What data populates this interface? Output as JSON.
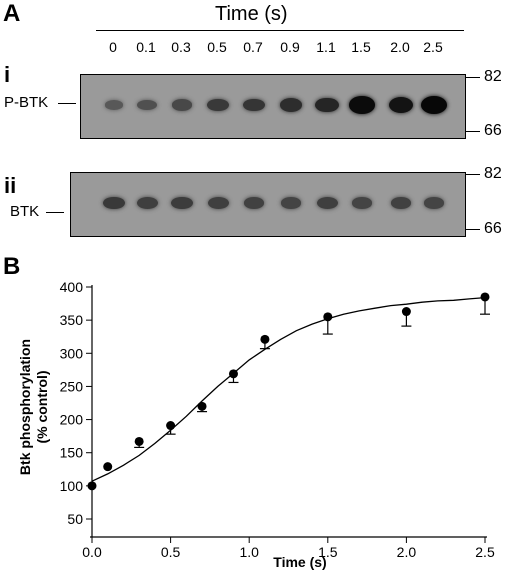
{
  "panel_a": {
    "letter": "A",
    "time_title": "Time (s)",
    "time_labels": [
      "0",
      "0.1",
      "0.3",
      "0.5",
      "0.7",
      "0.9",
      "1.1",
      "1.5",
      "2.0",
      "2.5"
    ],
    "blot_i": {
      "label": "i",
      "lane_label": "P-BTK",
      "marker_top": "82",
      "marker_bottom": "66",
      "band_intensity": [
        0.28,
        0.35,
        0.42,
        0.55,
        0.58,
        0.65,
        0.72,
        0.95,
        0.88,
        0.98
      ]
    },
    "blot_ii": {
      "label": "ii",
      "lane_label": "BTK",
      "marker_top": "82",
      "marker_bottom": "66",
      "band_intensity": [
        0.55,
        0.5,
        0.52,
        0.5,
        0.48,
        0.45,
        0.5,
        0.45,
        0.48,
        0.45
      ]
    }
  },
  "panel_b": {
    "letter": "B"
  },
  "chart_data": {
    "type": "scatter",
    "xlabel": "Time (s)",
    "ylabel": "Btk phosphorylation",
    "ylabel2": "(% control)",
    "xlim": [
      0,
      2.5
    ],
    "ylim": [
      50,
      400
    ],
    "x_ticks": [
      "0.0",
      "0.5",
      "1.0",
      "1.5",
      "2.0",
      "2.5"
    ],
    "x_tick_values": [
      0,
      0.5,
      1.0,
      1.5,
      2.0,
      2.5
    ],
    "y_ticks": [
      50,
      100,
      150,
      200,
      250,
      300,
      350,
      400
    ],
    "series": [
      {
        "x": [
          0,
          0.1,
          0.3,
          0.5,
          0.7,
          0.9,
          1.1,
          1.5,
          2.0,
          2.5
        ],
        "y": [
          100,
          129,
          167,
          191,
          220,
          269,
          321,
          355,
          363,
          385
        ],
        "error": [
          3,
          3,
          9,
          13,
          8,
          13,
          14,
          26,
          22,
          26
        ]
      }
    ],
    "fit_curve": {
      "x": [
        0,
        0.1,
        0.2,
        0.3,
        0.4,
        0.5,
        0.6,
        0.7,
        0.8,
        0.9,
        1.0,
        1.1,
        1.2,
        1.3,
        1.4,
        1.5,
        1.6,
        1.7,
        1.8,
        1.9,
        2.0,
        2.1,
        2.2,
        2.3,
        2.4,
        2.5
      ],
      "y": [
        107,
        118,
        131,
        146,
        164,
        184,
        205,
        228,
        250,
        270,
        290,
        306,
        321,
        334,
        344,
        352,
        359,
        364,
        368,
        372,
        374,
        377,
        379,
        380,
        382,
        384
      ]
    },
    "grid": false
  }
}
